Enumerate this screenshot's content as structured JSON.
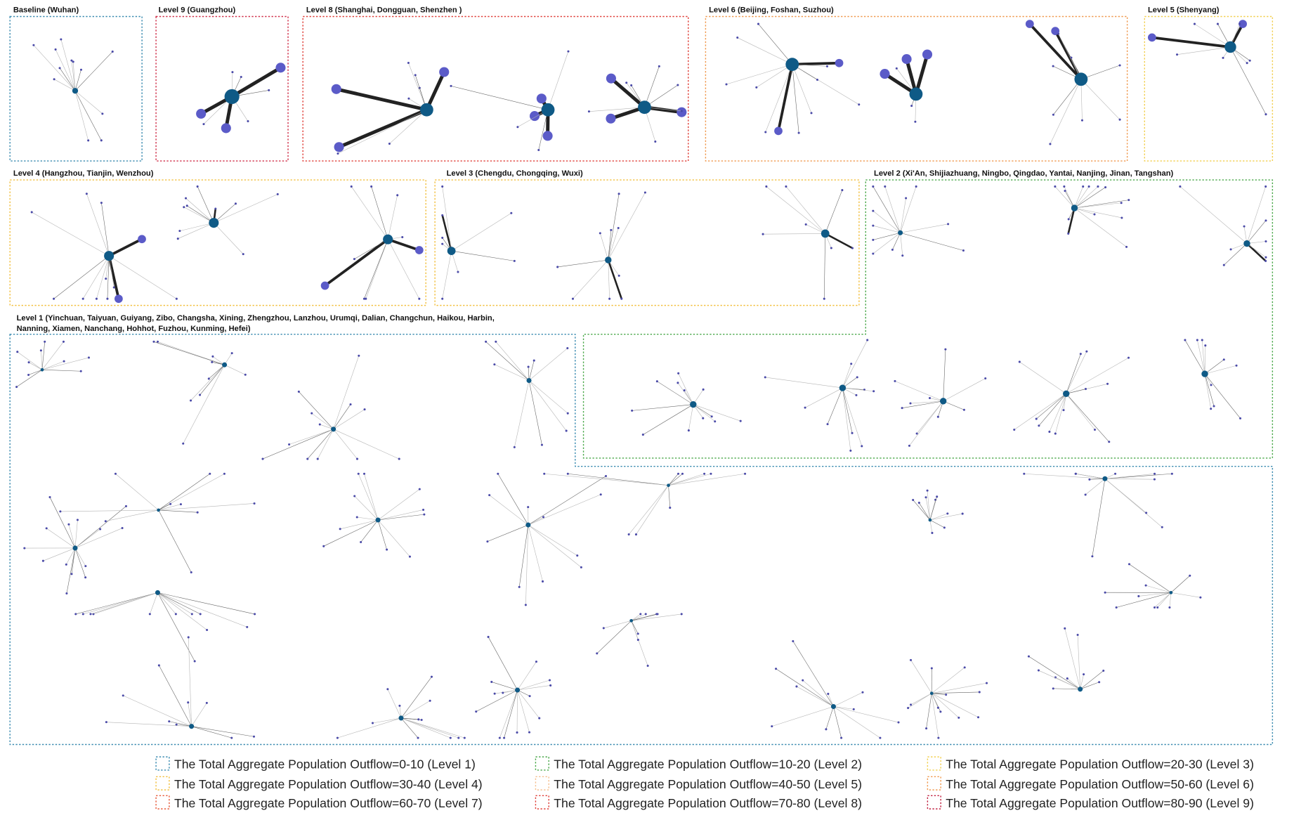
{
  "panels": [
    {
      "title": "Baseline (Wuhan)"
    },
    {
      "title": "Level 9 (Guangzhou)"
    },
    {
      "title": "Level 8 (Shanghai, Dongguan, Shenzhen )"
    },
    {
      "title": "Level 6 (Beijing, Foshan, Suzhou)"
    },
    {
      "title": "Level 5 (Shenyang)"
    },
    {
      "title": "Level 4 (Hangzhou, Tianjin, Wenzhou)"
    },
    {
      "title": "Level 3 (Chengdu, Chongqing, Wuxi)"
    },
    {
      "title": "Level 2 (Xi'An, Shijiazhuang, Ningbo, Qingdao, Yantai, Nanjing, Jinan, Tangshan)"
    },
    {
      "title": [
        "Level 1 (Yinchuan, Taiyuan, Guiyang, Zibo, Changsha, Xining, Zhengzhou, Lanzhou, Urumqi, Dalian, Changchun, Haikou, Harbin,",
        "Nanning, Xiamen, Nanchang, Hohhot, Fuzhou, Kunming, Hefei)"
      ]
    }
  ],
  "legend": [
    {
      "label": "The Total Aggregate Population Outflow=0-10 (Level 1)"
    },
    {
      "label": "The Total Aggregate Population Outflow=10-20 (Level 2)"
    },
    {
      "label": "The Total Aggregate Population Outflow=20-30 (Level 3)"
    },
    {
      "label": "The Total Aggregate Population Outflow=30-40 (Level 4)"
    },
    {
      "label": "The Total Aggregate Population Outflow=40-50 (Level 5)"
    },
    {
      "label": "The Total Aggregate Population Outflow=50-60 (Level 6)"
    },
    {
      "label": "The Total Aggregate Population Outflow=60-70 (Level 7)"
    },
    {
      "label": "The Total Aggregate Population Outflow=70-80 (Level 8)"
    },
    {
      "label": "The Total Aggregate Population Outflow=80-90 (Level 9)"
    }
  ]
}
